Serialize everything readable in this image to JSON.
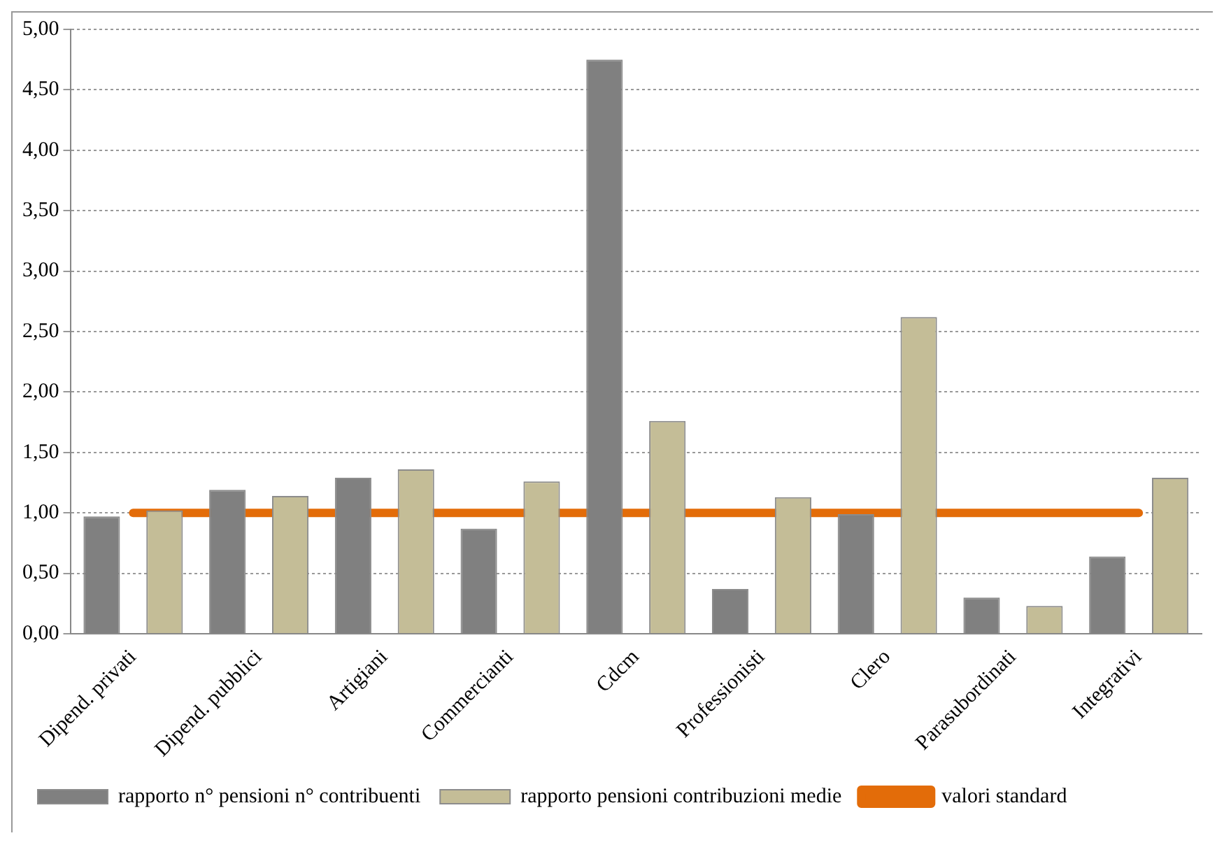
{
  "chart_data": {
    "type": "bar",
    "categories": [
      "Dipend. privati",
      "Dipend. pubblici",
      "Artigiani",
      "Commercianti",
      "Cdcm",
      "Professionisti",
      "Clero",
      "Parasubordinati",
      "Integrativi"
    ],
    "series": [
      {
        "name": "rapporto n° pensioni n° contribuenti",
        "color": "#808080",
        "values": [
          0.97,
          1.19,
          1.29,
          0.87,
          4.75,
          0.37,
          0.99,
          0.3,
          0.64
        ]
      },
      {
        "name": "rapporto pensioni contribuzioni medie",
        "color": "#c4bd97",
        "values": [
          1.02,
          1.14,
          1.36,
          1.26,
          1.76,
          1.13,
          2.62,
          0.23,
          1.29
        ]
      },
      {
        "name": "valori standard",
        "type": "line",
        "color": "#e36c09",
        "values": [
          1,
          1,
          1,
          1,
          1,
          1,
          1,
          1,
          1
        ]
      }
    ],
    "ylim": [
      0,
      5
    ],
    "yticks": [
      {
        "value": 0,
        "label": "0,00"
      },
      {
        "value": 0.5,
        "label": "0,50"
      },
      {
        "value": 1,
        "label": "1,00"
      },
      {
        "value": 1.5,
        "label": "1,50"
      },
      {
        "value": 2,
        "label": "2,00"
      },
      {
        "value": 2.5,
        "label": "2,50"
      },
      {
        "value": 3,
        "label": "3,00"
      },
      {
        "value": 3.5,
        "label": "3,50"
      },
      {
        "value": 4,
        "label": "4,00"
      },
      {
        "value": 4.5,
        "label": "4,50"
      },
      {
        "value": 5,
        "label": "5,00"
      }
    ],
    "grid": "y",
    "legend": "bottom"
  }
}
